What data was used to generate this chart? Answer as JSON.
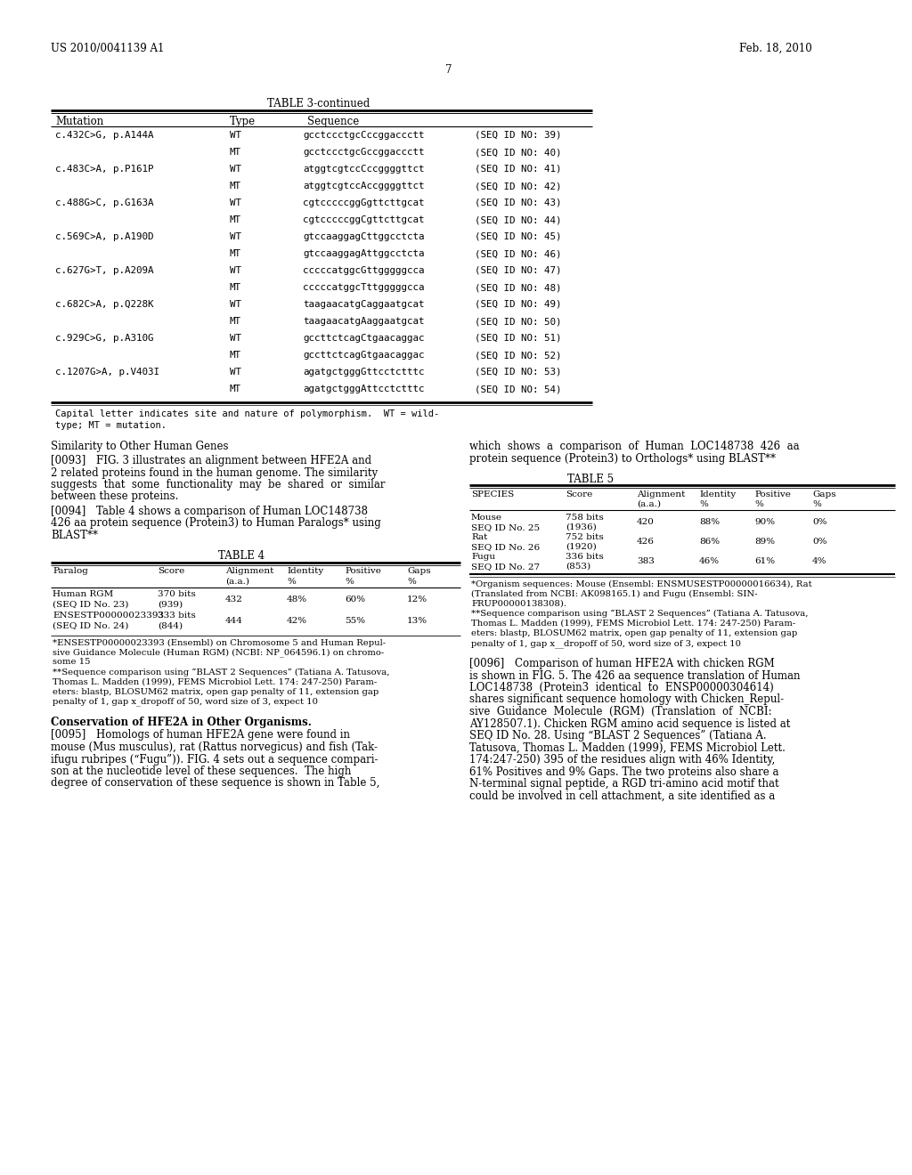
{
  "header_left": "US 2010/0041139 A1",
  "header_right": "Feb. 18, 2010",
  "page_number": "7",
  "table3_title": "TABLE 3-continued",
  "table3_rows": [
    [
      "c.432C>G, p.A144A",
      "WT",
      "gcctccctgcCccggaccctt",
      "(SEQ ID NO: 39)"
    ],
    [
      "",
      "MT",
      "gcctccctgcGccggaccctt",
      "(SEQ ID NO: 40)"
    ],
    [
      "c.483C>A, p.P161P",
      "WT",
      "atggtcgtccCccggggttct",
      "(SEQ ID NO: 41)"
    ],
    [
      "",
      "MT",
      "atggtcgtccAccggggttct",
      "(SEQ ID NO: 42)"
    ],
    [
      "c.488G>C, p.G163A",
      "WT",
      "cgtcccccggGgttcttgcat",
      "(SEQ ID NO: 43)"
    ],
    [
      "",
      "MT",
      "cgtcccccggCgttcttgcat",
      "(SEQ ID NO: 44)"
    ],
    [
      "c.569C>A, p.A190D",
      "WT",
      "gtccaaggagCttggcctcta",
      "(SEQ ID NO: 45)"
    ],
    [
      "",
      "MT",
      "gtccaaggagAttggcctcta",
      "(SEQ ID NO: 46)"
    ],
    [
      "c.627G>T, p.A209A",
      "WT",
      "cccccatggcGttgggggcca",
      "(SEQ ID NO: 47)"
    ],
    [
      "",
      "MT",
      "cccccatggcTttgggggcca",
      "(SEQ ID NO: 48)"
    ],
    [
      "c.682C>A, p.Q228K",
      "WT",
      "taagaacatgCaggaatgcat",
      "(SEQ ID NO: 49)"
    ],
    [
      "",
      "MT",
      "taagaacatgAaggaatgcat",
      "(SEQ ID NO: 50)"
    ],
    [
      "c.929C>G, p.A310G",
      "WT",
      "gccttctcagCtgaacaggac",
      "(SEQ ID NO: 51)"
    ],
    [
      "",
      "MT",
      "gccttctcagGtgaacaggac",
      "(SEQ ID NO: 52)"
    ],
    [
      "c.1207G>A, p.V403I",
      "WT",
      "agatgctgggGttcctctttc",
      "(SEQ ID NO: 53)"
    ],
    [
      "",
      "MT",
      "agatgctgggAttcctctttc",
      "(SEQ ID NO: 54)"
    ]
  ],
  "table3_footnote_line1": "Capital letter indicates site and nature of polymorphism.  WT = wild-",
  "table3_footnote_line2": "type; MT = mutation.",
  "section_title_left": "Similarity to Other Human Genes",
  "para_0093_lines": [
    "[0093] FIG. 3 illustrates an alignment between HFE2A and",
    "2 related proteins found in the human genome. The similarity",
    "suggests  that  some  functionality  may  be  shared  or  similar",
    "between these proteins."
  ],
  "para_0094_lines": [
    "[0094] Table 4 shows a comparison of Human LOC148738",
    "426 aa protein sequence (Protein3) to Human Paralogs* using",
    "BLAST**"
  ],
  "table4_title": "TABLE 4",
  "table4_rows": [
    [
      "Human RGM",
      "370 bits",
      "432",
      "48%",
      "60%",
      "12%"
    ],
    [
      "(SEQ ID No. 23)",
      "(939)",
      "",
      "",
      "",
      ""
    ],
    [
      "ENSESTP00000023393",
      "333 bits",
      "444",
      "42%",
      "55%",
      "13%"
    ],
    [
      "(SEQ ID No. 24)",
      "(844)",
      "",
      "",
      "",
      ""
    ]
  ],
  "table4_footnote1_lines": [
    "*ENSESTP00000023393 (Ensembl) on Chromosome 5 and Human Repul-",
    "sive Guidance Molecule (Human RGM) (NCBI: NP_064596.1) on chromo-",
    "some 15"
  ],
  "table4_footnote2_lines": [
    "**Sequence comparison using “BLAST 2 Sequences” (Tatiana A. Tatusova,",
    "Thomas L. Madden (1999), FEMS Microbiol Lett. 174: 247-250) Param-",
    "eters: blastp, BLOSUM62 matrix, open gap penalty of 11, extension gap",
    "penalty of 1, gap x_dropoff of 50, word size of 3, expect 10"
  ],
  "section_title2": "Conservation of HFE2A in Other Organisms.",
  "para_0095_lines": [
    "[0095] Homologs of human HFE2A gene were found in",
    "mouse (Mus musculus), rat (Rattus norvegicus) and fish (Tak-",
    "ifugu rubripes (“Fugu”)). FIG. 4 sets out a sequence compari-",
    "son at the nucleotide level of these sequences.  The high",
    "degree of conservation of these sequence is shown in Table 5,"
  ],
  "para_0094_right_lines": [
    "which  shows  a  comparison  of  Human  LOC148738  426  aa",
    "protein sequence (Protein3) to Orthologs* using BLAST**"
  ],
  "table5_title": "TABLE 5",
  "table5_rows": [
    [
      "Mouse",
      "758 bits",
      "420",
      "88%",
      "90%",
      "0%"
    ],
    [
      "SEQ ID No. 25",
      "(1936)",
      "",
      "",
      "",
      ""
    ],
    [
      "Rat",
      "752 bits",
      "426",
      "86%",
      "89%",
      "0%"
    ],
    [
      "SEQ ID No. 26",
      "(1920)",
      "",
      "",
      "",
      ""
    ],
    [
      "Fugu",
      "336 bits",
      "383",
      "46%",
      "61%",
      "4%"
    ],
    [
      "SEQ ID No. 27",
      "(853)",
      "",
      "",
      "",
      ""
    ]
  ],
  "table5_footnote1_lines": [
    "*Organism sequences: Mouse (Ensembl: ENSMUSESTP00000016634), Rat",
    "(Translated from NCBI: AK098165.1) and Fugu (Ensembl: SIN-",
    "FRUP00000138308)."
  ],
  "table5_footnote2_lines": [
    "**Sequence comparison using “BLAST 2 Sequences” (Tatiana A. Tatusova,",
    "Thomas L. Madden (1999), FEMS Microbiol Lett. 174: 247-250) Param-",
    "eters: blastp, BLOSUM62 matrix, open gap penalty of 11, extension gap",
    "penalty of 1, gap x__dropoff of 50, word size of 3, expect 10"
  ],
  "para_0096_lines": [
    "[0096] Comparison of human HFE2A with chicken RGM",
    "is shown in FIG. 5. The 426 aa sequence translation of Human",
    "LOC148738  (Protein3  identical  to  ENSP00000304614)",
    "shares significant sequence homology with Chicken_Repul-",
    "sive  Guidance  Molecule  (RGM)  (Translation  of  NCBI:",
    "AY128507.1). Chicken RGM amino acid sequence is listed at",
    "SEQ ID No. 28. Using “BLAST 2 Sequences” (Tatiana A.",
    "Tatusova, Thomas L. Madden (1999), FEMS Microbiol Lett.",
    "174:247-250) 395 of the residues align with 46% Identity,",
    "61% Positives and 9% Gaps. The two proteins also share a",
    "N-terminal signal peptide, a RGD tri-amino acid motif that",
    "could be involved in cell attachment, a site identified as a"
  ]
}
